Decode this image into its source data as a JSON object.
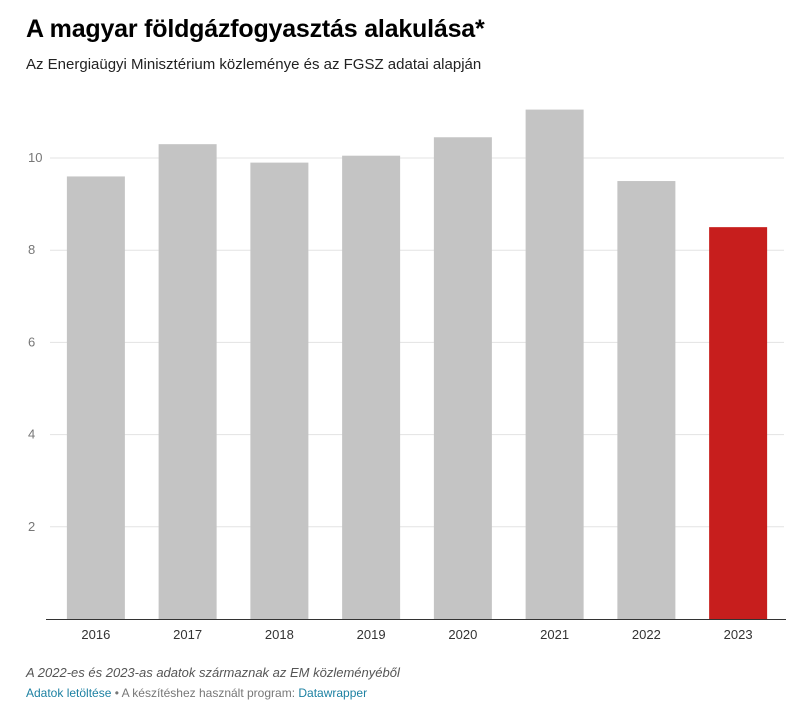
{
  "chart_data": {
    "type": "bar",
    "title": "A magyar földgázfogyasztás alakulása*",
    "subtitle": "Az Energiaügyi Minisztérium közleménye és az FGSZ adatai alapján",
    "categories": [
      "2016",
      "2017",
      "2018",
      "2019",
      "2020",
      "2021",
      "2022",
      "2023"
    ],
    "values": [
      9.6,
      10.3,
      9.9,
      10.05,
      10.45,
      11.05,
      9.5,
      8.5
    ],
    "highlight_index": 7,
    "ylim": [
      0,
      11.6
    ],
    "yticks": [
      2,
      4,
      6,
      8,
      10
    ],
    "grid": true,
    "colors": {
      "bar": "#c4c4c4",
      "highlight": "#c71e1d"
    },
    "xlabel": "",
    "ylabel": ""
  },
  "note": "A 2022-es és 2023-as adatok származnak az EM közleményéből",
  "footer": {
    "download_label": "Adatok letöltése",
    "separator": "•",
    "made_with": "A készítéshez használt program:",
    "tool_label": "Datawrapper"
  }
}
